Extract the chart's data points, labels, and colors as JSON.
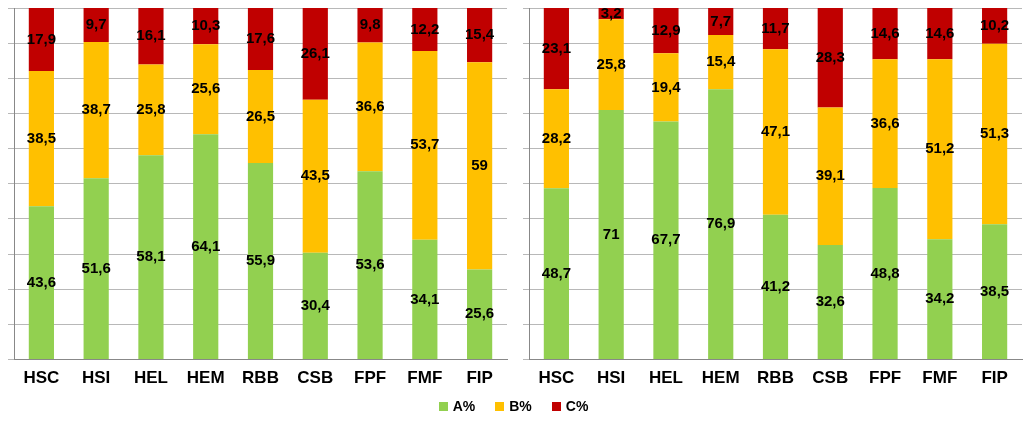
{
  "chart_data": [
    {
      "type": "bar",
      "stacked": true,
      "categories": [
        "HSC",
        "HSI",
        "HEL",
        "HEM",
        "RBB",
        "CSB",
        "FPF",
        "FMF",
        "FIP"
      ],
      "ylim": [
        0,
        100
      ],
      "yticks": [
        {
          "value": 0,
          "label": null
        },
        {
          "value": 10,
          "label": null
        },
        {
          "value": 20,
          "label": null
        },
        {
          "value": 30,
          "label": null
        },
        {
          "value": 40,
          "label": null
        },
        {
          "value": 50,
          "label": null
        },
        {
          "value": 60,
          "label": null
        },
        {
          "value": 70,
          "label": null
        },
        {
          "value": 80,
          "label": null
        },
        {
          "value": 90,
          "label": null
        },
        {
          "value": 100,
          "label": null
        }
      ],
      "tick_labels": "x",
      "grid": "y",
      "legend": "bottom",
      "series": [
        {
          "name": "A%",
          "color": "#92d050",
          "values": [
            43.6,
            51.6,
            58.1,
            64.1,
            55.9,
            30.4,
            53.6,
            34.1,
            25.6
          ],
          "value_labels": [
            "43,6",
            "51,6",
            "58,1",
            "64,1",
            "55,9",
            "30,4",
            "53,6",
            "34,1",
            "25,6"
          ]
        },
        {
          "name": "B%",
          "color": "#ffc000",
          "values": [
            38.5,
            38.7,
            25.8,
            25.6,
            26.5,
            43.5,
            36.6,
            53.7,
            59
          ],
          "value_labels": [
            "38,5",
            "38,7",
            "25,8",
            "25,6",
            "26,5",
            "43,5",
            "36,6",
            "53,7",
            "59"
          ]
        },
        {
          "name": "C%",
          "color": "#c00000",
          "values": [
            17.9,
            9.7,
            16.1,
            10.3,
            17.6,
            26.1,
            9.8,
            12.2,
            15.4
          ],
          "value_labels": [
            "17,9",
            "9,7",
            "16,1",
            "10,3",
            "17,6",
            "26,1",
            "9,8",
            "12,2",
            "15,4"
          ]
        }
      ]
    },
    {
      "type": "bar",
      "stacked": true,
      "categories": [
        "HSC",
        "HSI",
        "HEL",
        "HEM",
        "RBB",
        "CSB",
        "FPF",
        "FMF",
        "FIP"
      ],
      "ylim": [
        0,
        100
      ],
      "yticks": [
        {
          "value": 0,
          "label": null
        },
        {
          "value": 10,
          "label": null
        },
        {
          "value": 20,
          "label": null
        },
        {
          "value": 30,
          "label": null
        },
        {
          "value": 40,
          "label": null
        },
        {
          "value": 50,
          "label": null
        },
        {
          "value": 60,
          "label": null
        },
        {
          "value": 70,
          "label": null
        },
        {
          "value": 80,
          "label": null
        },
        {
          "value": 90,
          "label": null
        },
        {
          "value": 100,
          "label": null
        }
      ],
      "tick_labels": "x",
      "grid": "y",
      "legend": "bottom",
      "series": [
        {
          "name": "A%",
          "color": "#92d050",
          "values": [
            48.7,
            71,
            67.7,
            76.9,
            41.2,
            32.6,
            48.8,
            34.2,
            38.5
          ],
          "value_labels": [
            "48,7",
            "71",
            "67,7",
            "76,9",
            "41,2",
            "32,6",
            "48,8",
            "34,2",
            "38,5"
          ]
        },
        {
          "name": "B%",
          "color": "#ffc000",
          "values": [
            28.2,
            25.8,
            19.4,
            15.4,
            47.1,
            39.1,
            36.6,
            51.2,
            51.3
          ],
          "value_labels": [
            "28,2",
            "25,8",
            "19,4",
            "15,4",
            "47,1",
            "39,1",
            "36,6",
            "51,2",
            "51,3"
          ]
        },
        {
          "name": "C%",
          "color": "#c00000",
          "values": [
            23.1,
            3.2,
            12.9,
            7.7,
            11.7,
            28.3,
            14.6,
            14.6,
            10.2
          ],
          "value_labels": [
            "23,1",
            "3,2",
            "12,9",
            "7,7",
            "11,7",
            "28,3",
            "14,6",
            "14,6",
            "10,2"
          ]
        }
      ]
    }
  ]
}
